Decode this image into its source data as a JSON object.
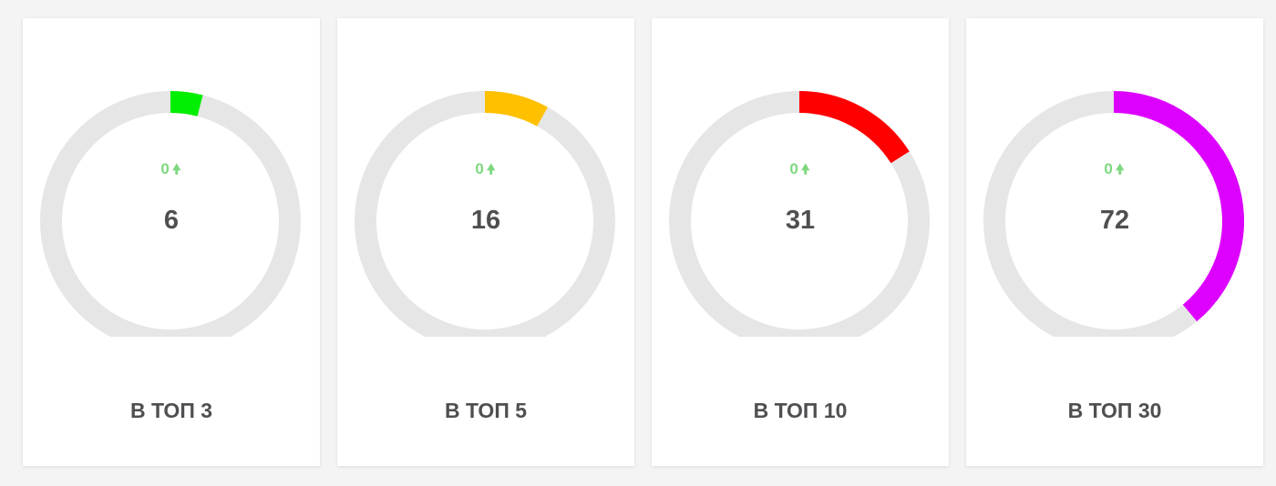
{
  "cards": [
    {
      "delta": "0",
      "arrow_icon": "arrow-up-icon",
      "value": "6",
      "label": "В ТОП 3",
      "color": "#00ee00",
      "progress": 0.04
    },
    {
      "delta": "0",
      "arrow_icon": "arrow-up-icon",
      "value": "16",
      "label": "В ТОП 5",
      "color": "#ffc000",
      "progress": 0.08
    },
    {
      "delta": "0",
      "arrow_icon": "arrow-up-icon",
      "value": "31",
      "label": "В ТОП 10",
      "color": "#ff0000",
      "progress": 0.16
    },
    {
      "delta": "0",
      "arrow_icon": "arrow-up-icon",
      "value": "72",
      "label": "В ТОП 30",
      "color": "#dd00ff",
      "progress": 0.39
    }
  ],
  "colors": {
    "track": "#e6e6e6",
    "delta": "#7fd87f",
    "text": "#4f4f52"
  }
}
